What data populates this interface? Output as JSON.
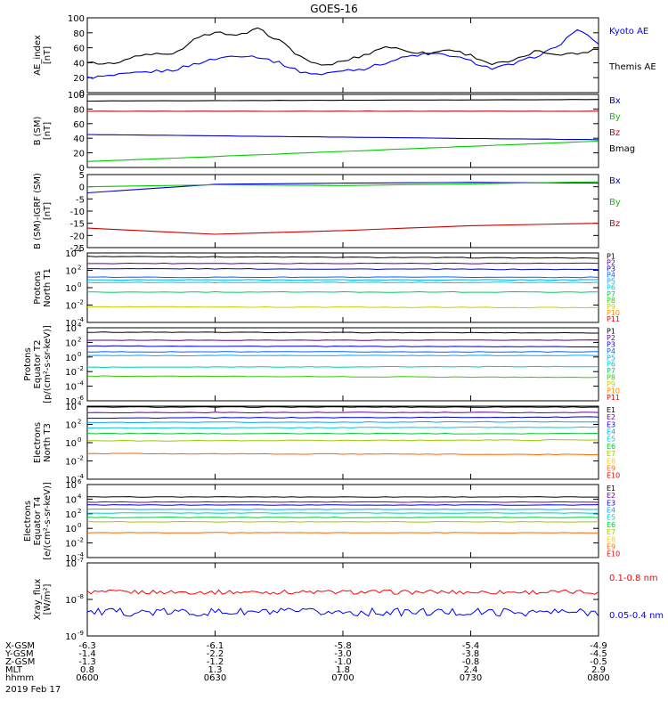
{
  "figure": {
    "title": "GOES-16",
    "date": "2019 Feb 17",
    "x_range_hhmm": [
      "0600",
      "0800"
    ]
  },
  "ephemeris": {
    "rows": [
      {
        "label": "X-GSM",
        "values": [
          "-6.3",
          "-6.1",
          "-5.8",
          "-5.4",
          "-4.9"
        ]
      },
      {
        "label": "Y-GSM",
        "values": [
          "-1.4",
          "-2.2",
          "-3.0",
          "-3.8",
          "-4.5"
        ]
      },
      {
        "label": "Z-GSM",
        "values": [
          "-1.3",
          "-1.2",
          "-1.0",
          "-0.8",
          "-0.5"
        ]
      },
      {
        "label": "MLT",
        "values": [
          "0.8",
          "1.3",
          "1.8",
          "2.4",
          "2.9"
        ]
      },
      {
        "label": "hhmm",
        "values": [
          "0600",
          "0630",
          "0700",
          "0730",
          "0800"
        ]
      }
    ]
  },
  "colors": {
    "kyoto_ae": "#0000ff",
    "themis_ae": "#000000",
    "bx": "#0000cc",
    "by": "#00cc00",
    "bz": "#cc0000",
    "bmag": "#000000",
    "xray_long": "#ff0000",
    "xray_short": "#0000ff",
    "proton_channels": [
      "#000000",
      "#5a0090",
      "#0000dd",
      "#0066ff",
      "#00aaff",
      "#00cccc",
      "#00cc66",
      "#33cc00",
      "#cccc00",
      "#ff8800",
      "#dd0000"
    ],
    "electron_channels": [
      "#000000",
      "#6a00a0",
      "#0000dd",
      "#00aaff",
      "#00cccc",
      "#00cc33",
      "#99cc00",
      "#ffcc00",
      "#ff6600",
      "#ee0000",
      "#cc0000"
    ]
  },
  "chart_data": [
    {
      "type": "line",
      "panel": "ae",
      "ylabel": "AE_index [nT]",
      "ylim": [
        0,
        100
      ],
      "yticks": [
        "0",
        "20",
        "40",
        "60",
        "80",
        "100"
      ],
      "x_hours": [
        6.0,
        6.0833,
        6.1667,
        6.25,
        6.3333,
        6.4167,
        6.5,
        6.5833,
        6.6667,
        6.75,
        6.8333,
        6.9167,
        7.0,
        7.0833,
        7.1667,
        7.25,
        7.3333,
        7.4167,
        7.5,
        7.5833,
        7.6667,
        7.75,
        7.8333,
        7.9167,
        8.0
      ],
      "series": [
        {
          "name": "Kyoto AE",
          "color_key": "kyoto_ae",
          "values": [
            20,
            22,
            25,
            28,
            30,
            38,
            45,
            50,
            48,
            40,
            28,
            24,
            30,
            32,
            40,
            48,
            52,
            50,
            42,
            32,
            38,
            48,
            60,
            85,
            65
          ]
        },
        {
          "name": "Themis AE",
          "color_key": "themis_ae",
          "values": [
            42,
            38,
            46,
            52,
            50,
            70,
            82,
            75,
            85,
            70,
            48,
            35,
            42,
            50,
            62,
            56,
            52,
            58,
            50,
            38,
            42,
            55,
            52,
            52,
            58
          ]
        }
      ]
    },
    {
      "type": "line",
      "panel": "b_sm",
      "ylabel": "B (SM) [nT]",
      "ylim": [
        0,
        100
      ],
      "yticks": [
        "0",
        "20",
        "40",
        "60",
        "80",
        "100"
      ],
      "x_hours": [
        6.0,
        8.0
      ],
      "series": [
        {
          "name": "Bx",
          "color_key": "bx",
          "values": [
            45,
            38
          ]
        },
        {
          "name": "By",
          "color_key": "by",
          "values": [
            8,
            36
          ]
        },
        {
          "name": "Bz",
          "color_key": "bz",
          "values": [
            77,
            77
          ]
        },
        {
          "name": "Bmag",
          "color_key": "bmag",
          "values": [
            91,
            93
          ]
        }
      ]
    },
    {
      "type": "line",
      "panel": "b_minus_igrf",
      "ylabel": "B (SM)-IGRF (SM) [nT]",
      "ylim": [
        -25,
        5
      ],
      "yticks": [
        "5",
        "0",
        "-5",
        "-10",
        "-15",
        "-20",
        "-25"
      ],
      "x_hours": [
        6.0,
        6.5,
        7.0,
        7.5,
        8.0
      ],
      "series": [
        {
          "name": "Bx",
          "color_key": "bx",
          "values": [
            -2.5,
            1.0,
            1.5,
            1.8,
            1.5
          ]
        },
        {
          "name": "By",
          "color_key": "by",
          "values": [
            0.0,
            0.8,
            0.5,
            1.2,
            2.0
          ]
        },
        {
          "name": "Bz",
          "color_key": "bz",
          "values": [
            -17.0,
            -19.5,
            -18.0,
            -16.0,
            -15.0
          ]
        }
      ]
    },
    {
      "type": "line",
      "panel": "protons_north",
      "ylabel": "Protons North T1",
      "yscale": "log",
      "ylim_exp": [
        -4,
        4
      ],
      "yticks_exp": [
        4,
        2,
        0,
        -2,
        -4
      ],
      "legend": [
        "P1",
        "P2",
        "P3",
        "P4",
        "P5",
        "P6",
        "P7",
        "P8",
        "P9",
        "P10",
        "P11"
      ],
      "series": [
        {
          "name": "P1",
          "log_values": [
            3.6,
            3.4
          ]
        },
        {
          "name": "P2",
          "log_values": [
            2.8,
            2.8
          ]
        },
        {
          "name": "P3",
          "log_values": [
            2.2,
            2.1
          ]
        },
        {
          "name": "P4",
          "log_values": [
            1.2,
            1.2
          ]
        },
        {
          "name": "P5",
          "log_values": [
            0.9,
            0.9
          ]
        },
        {
          "name": "P6",
          "log_values": [
            0.6,
            0.6
          ]
        },
        {
          "name": "P7",
          "log_values": [
            -0.5,
            -0.5
          ]
        },
        {
          "name": "P9",
          "log_values": [
            -2.2,
            -2.3
          ]
        }
      ]
    },
    {
      "type": "line",
      "panel": "protons_equator",
      "ylabel": "Protons Equator T2 [p/(cm²-s-sr-keV)]",
      "yscale": "log",
      "ylim_exp": [
        -6,
        4
      ],
      "yticks_exp": [
        4,
        2,
        0,
        -2,
        -4,
        -6
      ],
      "legend": [
        "P1",
        "P2",
        "P3",
        "P4",
        "P5",
        "P6",
        "P7",
        "P8",
        "P9",
        "P10",
        "P11"
      ],
      "series": [
        {
          "name": "P1",
          "log_values": [
            3.4,
            3.3
          ]
        },
        {
          "name": "P2",
          "log_values": [
            2.3,
            2.3
          ]
        },
        {
          "name": "P3",
          "log_values": [
            1.5,
            1.4
          ]
        },
        {
          "name": "P4",
          "log_values": [
            0.7,
            0.7
          ]
        },
        {
          "name": "P5",
          "log_values": [
            0.2,
            0.2
          ]
        },
        {
          "name": "P6",
          "log_values": [
            -1.4,
            -1.3
          ]
        },
        {
          "name": "P8",
          "log_values": [
            -2.6,
            -2.8
          ]
        }
      ]
    },
    {
      "type": "line",
      "panel": "electrons_north",
      "ylabel": "Electrons North T3",
      "yscale": "log",
      "ylim_exp": [
        -4,
        4
      ],
      "yticks_exp": [
        4,
        2,
        0,
        -2,
        -4
      ],
      "legend": [
        "E1",
        "E2",
        "E3",
        "E4",
        "E5",
        "E6",
        "E7",
        "E8",
        "E9",
        "E10"
      ],
      "series": [
        {
          "name": "E1",
          "log_values": [
            3.9,
            3.9
          ]
        },
        {
          "name": "E2",
          "log_values": [
            3.3,
            3.3
          ]
        },
        {
          "name": "E3",
          "log_values": [
            2.7,
            2.8
          ]
        },
        {
          "name": "E4",
          "log_values": [
            2.2,
            2.3
          ]
        },
        {
          "name": "E5",
          "log_values": [
            1.6,
            1.7
          ]
        },
        {
          "name": "E6",
          "log_values": [
            1.0,
            1.0
          ]
        },
        {
          "name": "E7",
          "log_values": [
            0.2,
            0.3
          ]
        },
        {
          "name": "E9",
          "log_values": [
            -1.2,
            -1.3
          ]
        }
      ]
    },
    {
      "type": "line",
      "panel": "electrons_equator",
      "ylabel": "Electrons Equator T4 [e/(cm²-s-sr-keV)]",
      "yscale": "log",
      "ylim_exp": [
        -4,
        6
      ],
      "yticks_exp": [
        6,
        4,
        2,
        0,
        -2,
        -4
      ],
      "legend": [
        "E1",
        "E2",
        "E3",
        "E4",
        "E5",
        "E6",
        "E7",
        "E8",
        "E9",
        "E10"
      ],
      "series": [
        {
          "name": "E1",
          "log_values": [
            4.3,
            4.3
          ]
        },
        {
          "name": "E2",
          "log_values": [
            3.6,
            3.6
          ]
        },
        {
          "name": "E3",
          "log_values": [
            3.2,
            3.2
          ]
        },
        {
          "name": "E4",
          "log_values": [
            2.6,
            2.6
          ]
        },
        {
          "name": "E5",
          "log_values": [
            2.1,
            2.1
          ]
        },
        {
          "name": "E6",
          "log_values": [
            1.5,
            1.5
          ]
        },
        {
          "name": "E7",
          "log_values": [
            0.9,
            0.9
          ]
        },
        {
          "name": "E9",
          "log_values": [
            -0.6,
            -0.6
          ]
        }
      ]
    },
    {
      "type": "line",
      "panel": "xray",
      "ylabel": "Xray_flux [W/m²]",
      "yscale": "log",
      "ylim_exp": [
        -9,
        -7
      ],
      "yticks_exp": [
        -7,
        -8,
        -9
      ],
      "series": [
        {
          "name": "0.1-0.8 nm",
          "color_key": "xray_long",
          "log_level": -7.8
        },
        {
          "name": "0.05-0.4 nm",
          "color_key": "xray_short",
          "log_level": -8.35
        }
      ]
    }
  ]
}
